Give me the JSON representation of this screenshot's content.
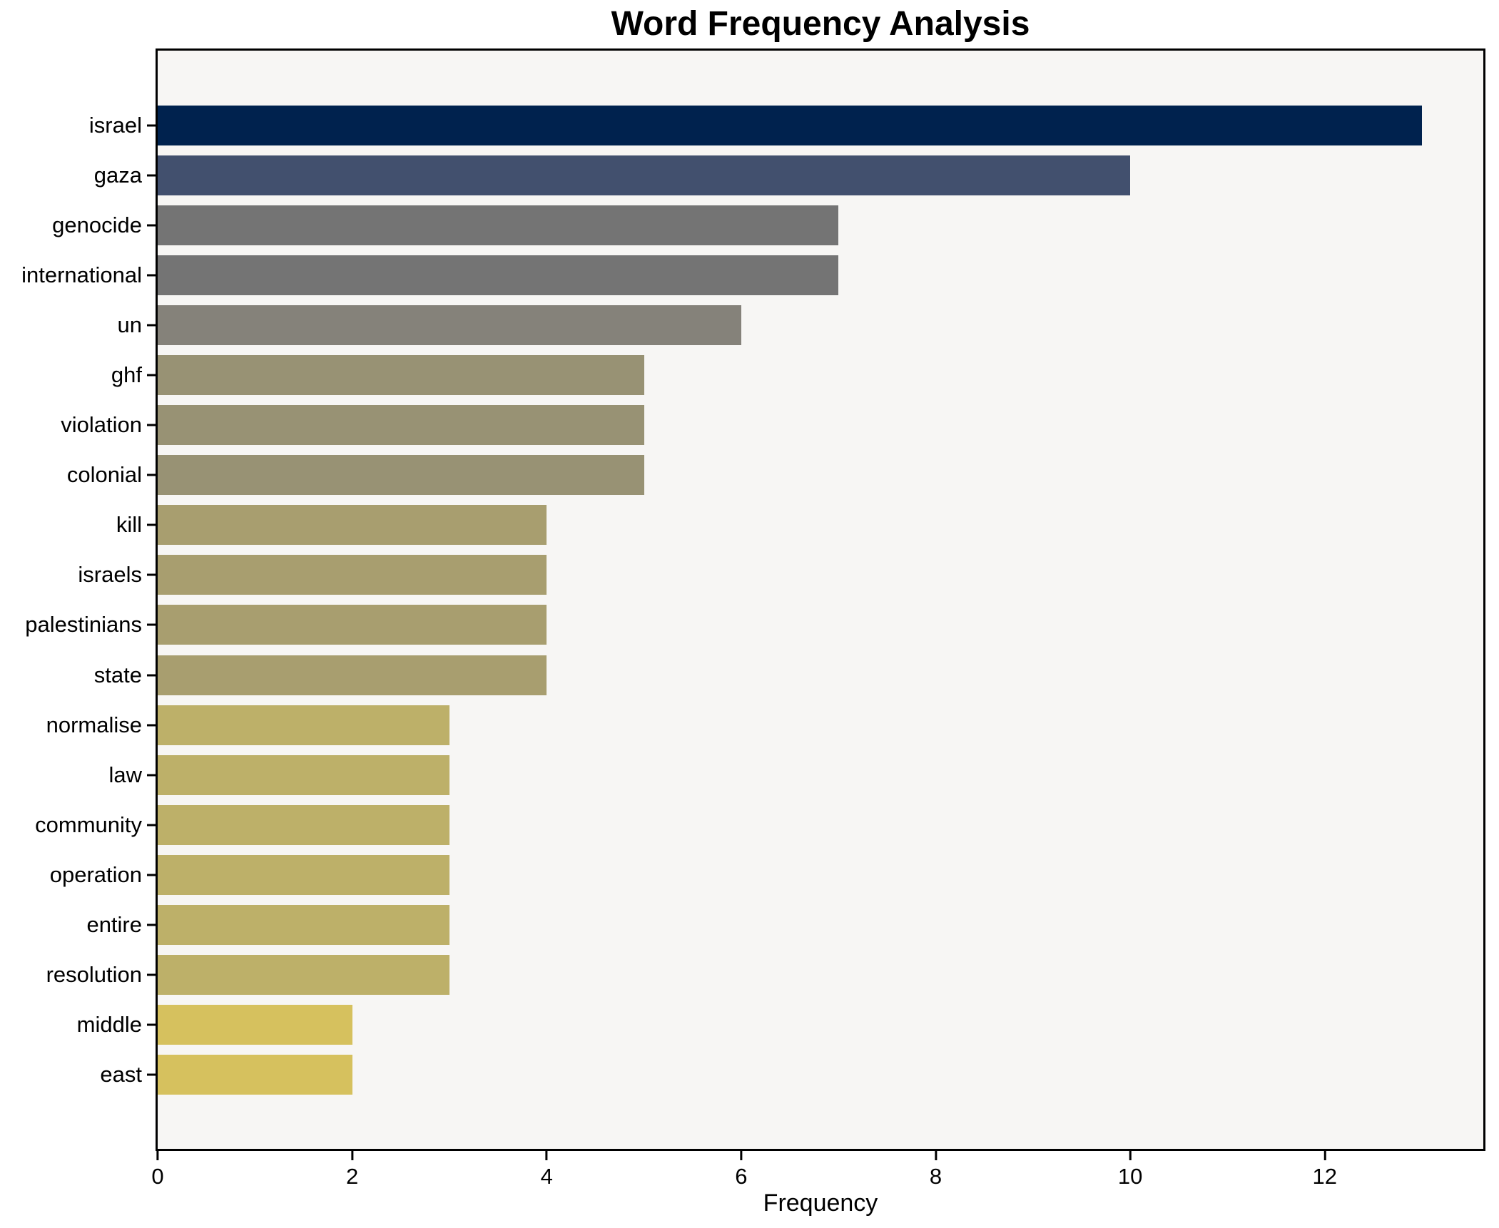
{
  "title": "Word Frequency Analysis",
  "x_axis_label": "Frequency",
  "chart_data": {
    "type": "bar",
    "orientation": "horizontal",
    "title": "Word Frequency Analysis",
    "xlabel": "Frequency",
    "ylabel": "",
    "categories": [
      "israel",
      "gaza",
      "genocide",
      "international",
      "un",
      "ghf",
      "violation",
      "colonial",
      "kill",
      "israels",
      "palestinians",
      "state",
      "normalise",
      "law",
      "community",
      "operation",
      "entire",
      "resolution",
      "middle",
      "east"
    ],
    "values": [
      13,
      10,
      7,
      7,
      6,
      5,
      5,
      5,
      4,
      4,
      4,
      4,
      3,
      3,
      3,
      3,
      3,
      3,
      2,
      2
    ],
    "bar_colors": [
      "#00224e",
      "#42506e",
      "#747474",
      "#747474",
      "#85827a",
      "#989274",
      "#989274",
      "#989274",
      "#a89e6f",
      "#a89e6f",
      "#a89e6f",
      "#a89e6f",
      "#bdb069",
      "#bdb069",
      "#bdb069",
      "#bdb069",
      "#bdb069",
      "#bdb069",
      "#d6c15e",
      "#d6c15e"
    ],
    "x_ticks": [
      0,
      2,
      4,
      6,
      8,
      10,
      12
    ],
    "xlim": [
      0,
      13.63
    ],
    "grid": false,
    "legend_position": "none",
    "plot_background": "#f7f6f4",
    "figure_background": "#ffffff",
    "bar_height_fraction": 0.8
  }
}
